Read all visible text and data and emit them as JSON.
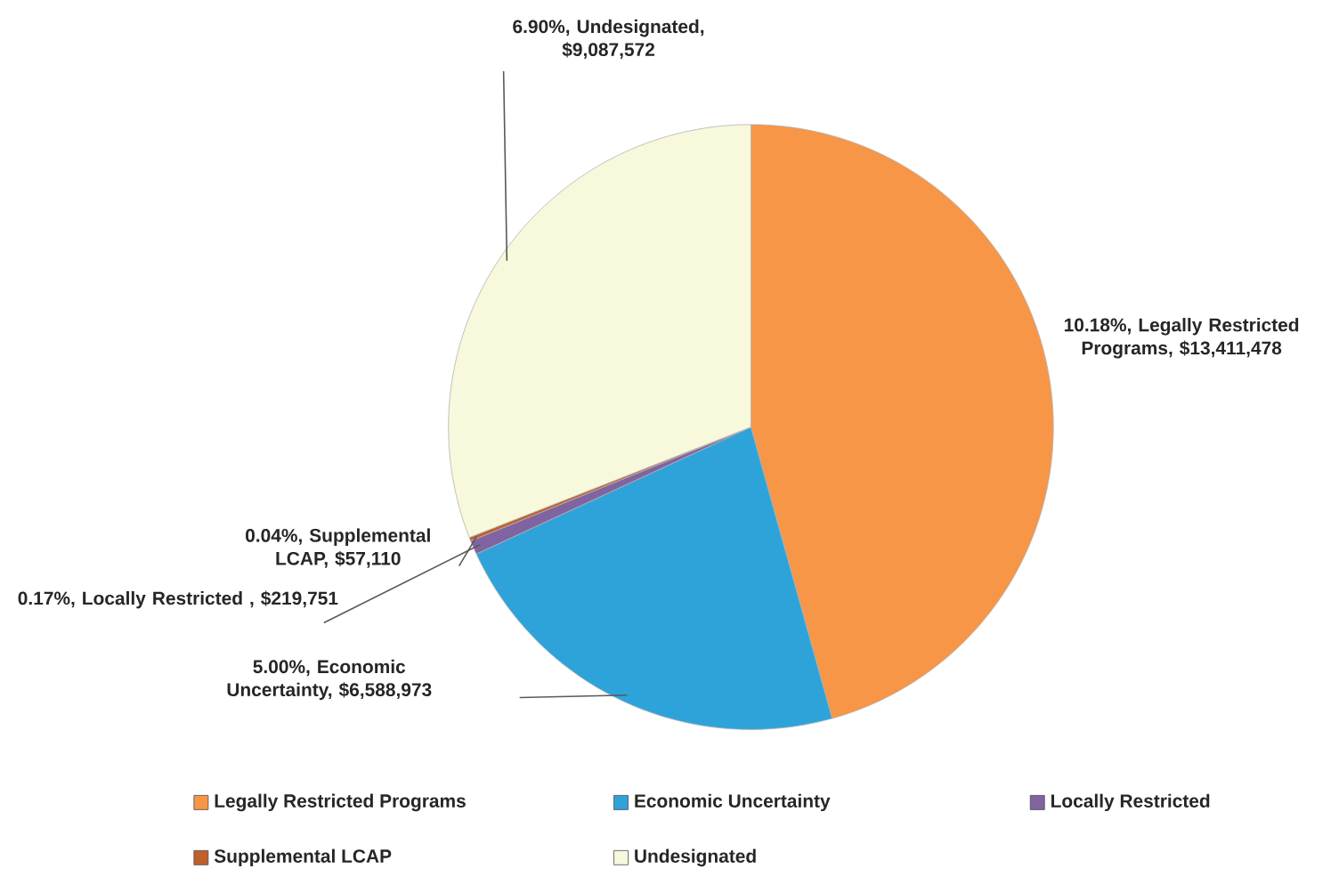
{
  "chart_data": {
    "type": "pie",
    "categories": [
      "Legally Restricted Programs",
      "Economic Uncertainty",
      "Locally Restricted",
      "Supplemental LCAP",
      "Undesignated"
    ],
    "values": [
      13411478,
      6588973,
      219751,
      57110,
      9087572
    ],
    "colors": [
      "#f79646",
      "#2ea3da",
      "#8064a2",
      "#c0602c",
      "#f8f8dc"
    ],
    "value_labels": [
      "10.18%, Legally Restricted Programs, $13,411,478",
      "5.00%, Economic Uncertainty, $6,588,973",
      "0.17%, Locally Restricted , $219,751",
      "0.04%, Supplemental LCAP, $57,110",
      "6.90%, Undesignated, $9,087,572"
    ],
    "legend": "bottom"
  }
}
